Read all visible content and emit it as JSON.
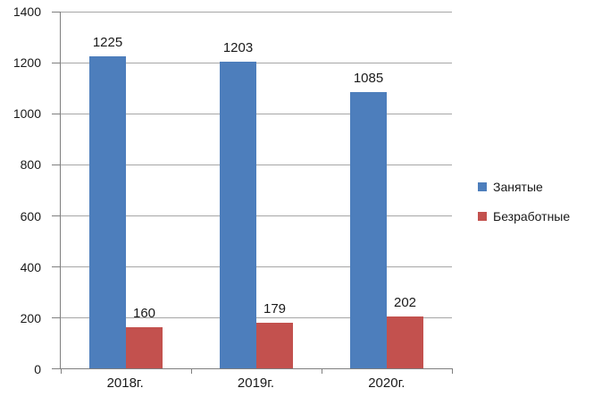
{
  "chart_data": {
    "type": "bar",
    "title": "",
    "xlabel": "",
    "ylabel": "",
    "categories": [
      "2018г.",
      "2019г.",
      "2020г."
    ],
    "series": [
      {
        "name": "Занятые",
        "color": "#4d7ebc",
        "values": [
          1225,
          1203,
          1085
        ]
      },
      {
        "name": "Безработные",
        "color": "#c3514e",
        "values": [
          160,
          179,
          202
        ]
      }
    ],
    "ylim": [
      0,
      1400
    ],
    "ytick_step": 200,
    "yticks": [
      0,
      200,
      400,
      600,
      800,
      1000,
      1200,
      1400
    ],
    "grid": true,
    "data_labels": true,
    "legend_position": "right"
  },
  "colors": {
    "background": "#ffffff",
    "gridline": "#a6a6a6",
    "axis": "#7f7f7f",
    "text": "#1a1a1a"
  }
}
